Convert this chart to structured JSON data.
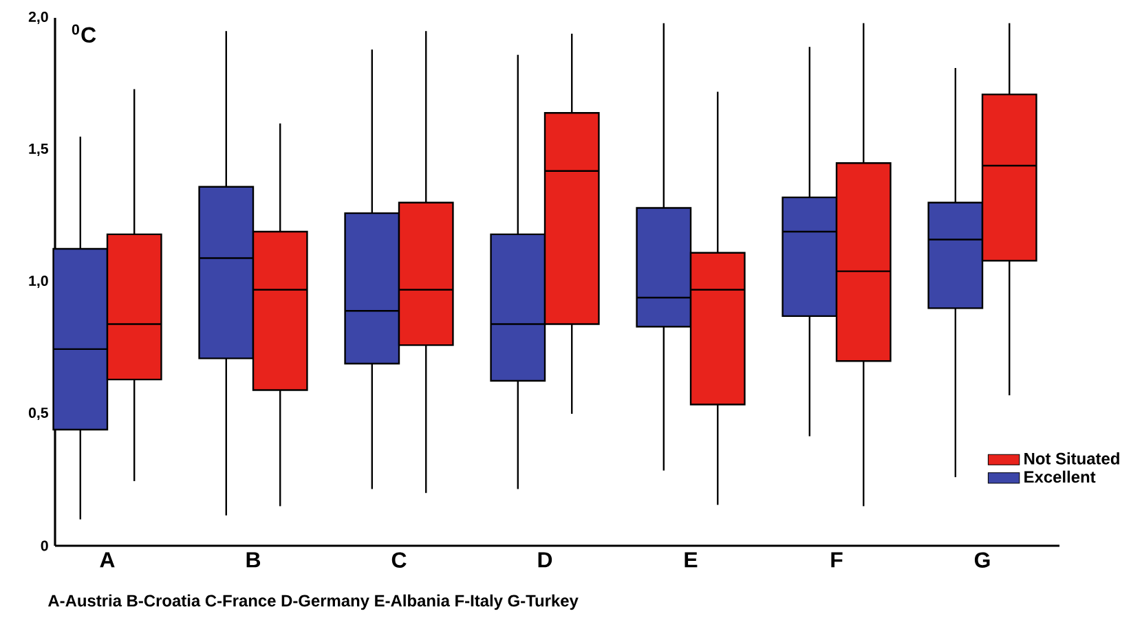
{
  "chart_data": {
    "type": "box",
    "ylabel": "$^{0}$C",
    "categories": [
      "A",
      "B",
      "C",
      "D",
      "E",
      "F",
      "G"
    ],
    "series": [
      {
        "name": "Excellent",
        "color": "#3c46a8",
        "boxes": [
          {
            "low": 0.1,
            "q1": 0.44,
            "median": 0.745,
            "q3": 1.125,
            "high": 1.55
          },
          {
            "low": 0.115,
            "q1": 0.71,
            "median": 1.09,
            "q3": 1.36,
            "high": 1.95
          },
          {
            "low": 0.215,
            "q1": 0.69,
            "median": 0.89,
            "q3": 1.26,
            "high": 1.88
          },
          {
            "low": 0.215,
            "q1": 0.625,
            "median": 0.84,
            "q3": 1.18,
            "high": 1.86
          },
          {
            "low": 0.285,
            "q1": 0.83,
            "median": 0.94,
            "q3": 1.28,
            "high": 1.98
          },
          {
            "low": 0.415,
            "q1": 0.87,
            "median": 1.19,
            "q3": 1.32,
            "high": 1.89
          },
          {
            "low": 0.26,
            "q1": 0.9,
            "median": 1.16,
            "q3": 1.3,
            "high": 1.81
          }
        ]
      },
      {
        "name": "Not Situated",
        "color": "#e8231c",
        "boxes": [
          {
            "low": 0.245,
            "q1": 0.63,
            "median": 0.84,
            "q3": 1.18,
            "high": 1.73
          },
          {
            "low": 0.15,
            "q1": 0.59,
            "median": 0.97,
            "q3": 1.19,
            "high": 1.6
          },
          {
            "low": 0.2,
            "q1": 0.76,
            "median": 0.97,
            "q3": 1.3,
            "high": 1.95
          },
          {
            "low": 0.5,
            "q1": 0.84,
            "median": 1.42,
            "q3": 1.64,
            "high": 1.94
          },
          {
            "low": 0.155,
            "q1": 0.535,
            "median": 0.97,
            "q3": 1.11,
            "high": 1.72
          },
          {
            "low": 0.15,
            "q1": 0.7,
            "median": 1.04,
            "q3": 1.45,
            "high": 1.98
          },
          {
            "low": 0.57,
            "q1": 1.08,
            "median": 1.44,
            "q3": 1.71,
            "high": 1.98
          }
        ]
      }
    ],
    "ylim": [
      0,
      2.0
    ],
    "yticks": [
      0,
      {
        "value": 0.5,
        "label": "0,5"
      },
      {
        "value": 1.0,
        "label": "1,0"
      },
      {
        "value": 1.5,
        "label": "1,5"
      },
      {
        "value": 2.0,
        "label": "2,0"
      }
    ],
    "legend": "bottom right",
    "annotations": [
      "A-Austria B-Croatia C-France D-Germany E-Albania F-Italy G-Turkey"
    ]
  }
}
